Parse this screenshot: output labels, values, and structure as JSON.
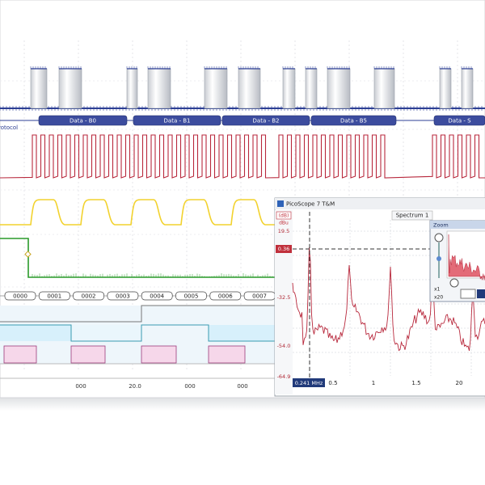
{
  "protocol": {
    "label": "rotocol",
    "packets": [
      "Data - B0",
      "Data - B1",
      "Data - B2",
      "Data - B5",
      "Data - S"
    ]
  },
  "hex_row": [
    "0000",
    "0001",
    "0002",
    "0003",
    "0004",
    "0005",
    "0006",
    "0007"
  ],
  "time_axis": [
    "000",
    "20.0",
    "000",
    "000"
  ],
  "spectrum_window": {
    "title": "PicoScope 7 T&M",
    "tab": "Spectrum 1",
    "unit_top": "(dB)",
    "unit": "dBu",
    "y_labels": [
      "19.5",
      "0.36",
      "-32.5",
      "-54.0",
      "-64.9"
    ],
    "cursor_label": "0.241 MHz",
    "x_labels": [
      "0.5",
      "1",
      "1.5",
      "20"
    ],
    "zoom": {
      "title": "Zoom",
      "levels": [
        "x1",
        "x20"
      ]
    }
  }
}
